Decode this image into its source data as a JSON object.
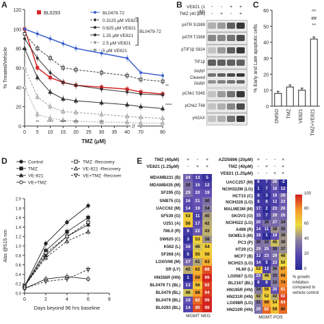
{
  "panels": {
    "A": "A",
    "B": "B",
    "C": "C",
    "D": "D",
    "E": "E"
  },
  "panelA": {
    "ylabel": "% Treated/Vehicle",
    "xlabel": "TMZ (μM)",
    "legend_bl0293": "BL0293",
    "legend_group_label": "BL0479-72",
    "legend_items": [
      "BL0479-72",
      "0.3125 μM VE821",
      "0.625 μM VE821",
      "1.25 μM VE821",
      "2.5 μM VE821",
      "5 μM VE821"
    ],
    "yticks": [
      "0",
      "20",
      "40",
      "60",
      "80",
      "100",
      "120"
    ],
    "xticks": [
      "0",
      "5",
      "10",
      "15",
      "20",
      "25",
      "30",
      "35",
      "40",
      "70",
      "80"
    ]
  },
  "panelB": {
    "header_ve821": "VE821 (1 μM)",
    "header_tmz": "TMZ (40 μM)",
    "header_signs_ve": [
      "-",
      "-",
      "+",
      "+"
    ],
    "header_signs_tmz": [
      "-",
      "+",
      "-",
      "+"
    ],
    "rows": [
      "pATR S1989",
      "pATR T1989",
      "pTIF1β S824",
      "TIF1β",
      "PARP Cleaved PARP",
      "pChk1 S345",
      "pChk2 T68",
      "γH2AX"
    ]
  },
  "panelC": {
    "ylabel": "% Early and Late apoptotic cells",
    "categories": [
      "DMSO",
      "TMZ",
      "VE821",
      "TMZ+VE821"
    ],
    "yticks": [
      "0",
      "10",
      "20",
      "30",
      "40",
      "50",
      "60"
    ],
    "sig": [
      "^^",
      "##",
      "**"
    ]
  },
  "panelD": {
    "ylabel": "Abs @515 nm",
    "xlabel": "Days beyond 96 hrs baseline",
    "legend": [
      "Control",
      "TMZ",
      "VE-821",
      "VE+TMZ",
      "TMZ -Recovery",
      "VE-821 -Recovery",
      "VE+TMZ -Recover"
    ],
    "yticks": [
      "0.0",
      "0.2",
      "0.4",
      "0.6",
      "0.8",
      "1.0",
      "1.2",
      "1.4",
      "1.6",
      "1.8",
      "2.0"
    ],
    "xticks": [
      "0",
      "2",
      "4",
      "6",
      "8"
    ]
  },
  "panelE": {
    "left_headers": [
      "TMZ (40μM)",
      "VE821 (1.25μM)"
    ],
    "left_signs": [
      [
        "+",
        "-",
        "+"
      ],
      [
        "-",
        "+",
        "+"
      ]
    ],
    "left_footer": "MGMT NEG",
    "left_rows": [
      {
        "name": "MDAMB231 (B)",
        "v": [
          "24",
          "13",
          "5"
        ]
      },
      {
        "name": "MDAMB435 (M)",
        "v": [
          "30",
          "15",
          "12"
        ]
      },
      {
        "name": "SF295 (G)",
        "v": [
          "29",
          "20",
          "19"
        ]
      },
      {
        "name": "SNB75 (G)",
        "v": [
          "16",
          "21",
          "30"
        ]
      },
      {
        "name": "UACC62 (M)",
        "v": [
          "14",
          "19",
          "34"
        ]
      },
      {
        "name": "SF539 (G)",
        "v": [
          "53",
          "11",
          "40"
        ]
      },
      {
        "name": "U251 (A)",
        "v": [
          "56",
          "17",
          "42"
        ]
      },
      {
        "name": "786.0 (R)",
        "v": [
          "9",
          "22",
          "43"
        ]
      },
      {
        "name": "SW620 (C)",
        "v": [
          "3",
          "53",
          "38"
        ]
      },
      {
        "name": "K562 (L)",
        "v": [
          "16",
          "46",
          "54"
        ]
      },
      {
        "name": "SF268 (A)",
        "v": [
          "5",
          "55",
          "56"
        ]
      },
      {
        "name": "LOXIVMI (M)",
        "v": [
          "27",
          "41",
          "63"
        ]
      },
      {
        "name": "SR (LY)",
        "v": [
          "42",
          "62",
          "88"
        ]
      },
      {
        "name": "HN356R (HN)",
        "v": [
          "1",
          "69",
          "99"
        ]
      },
      {
        "name": "BL0479 71 (BL)",
        "v": [
          "13",
          "56",
          "92"
        ]
      },
      {
        "name": "BL0479 (BL)",
        "v": [
          "46",
          "68",
          "94"
        ]
      },
      {
        "name": "BL0479 (BL)",
        "v": [
          "19",
          "82",
          "99"
        ]
      },
      {
        "name": "BL0293 (BL)",
        "v": [
          "14",
          "90",
          "99"
        ]
      }
    ],
    "right_headers": [
      "AZD5896 (20μM)",
      "TMZ (40μM)",
      "VE821 (1.25μM)"
    ],
    "right_signs": [
      [
        "+",
        "-",
        "-",
        "+"
      ],
      [
        "-",
        "+",
        "-",
        "+"
      ],
      [
        "-",
        "-",
        "+",
        "+"
      ]
    ],
    "right_footer": "MGMT POS",
    "right_rows": [
      {
        "name": "UACC257 (M)",
        "v": [
          "6",
          "7",
          "26",
          "-2"
        ]
      },
      {
        "name": "NCIH322M (LG)",
        "v": [
          "1",
          "7",
          "18",
          "12"
        ]
      },
      {
        "name": "HCT15 (C)",
        "v": [
          "8",
          "3",
          "18",
          "28"
        ]
      },
      {
        "name": "NCIH228 (LG)",
        "v": [
          "8",
          "8",
          "12",
          "23"
        ]
      },
      {
        "name": "MALME3M (M)",
        "v": [
          "17",
          "2",
          "23",
          "26"
        ]
      },
      {
        "name": "SKOV3 (O)",
        "v": [
          "15",
          "7",
          "29",
          "26"
        ]
      },
      {
        "name": "NCIH522 (LG)",
        "v": [
          "20",
          "30",
          "27",
          "34"
        ]
      },
      {
        "name": "A498 (R)",
        "v": [
          "14",
          "11",
          "38",
          "35"
        ]
      },
      {
        "name": "SKMEL5 (M)",
        "v": [
          "18",
          "1",
          "18",
          "38"
        ]
      },
      {
        "name": "PC3 (P)",
        "v": [
          "30",
          "32",
          "45",
          "38"
        ]
      },
      {
        "name": "HT29 (C)",
        "v": [
          "29",
          "25",
          "30",
          "37"
        ]
      },
      {
        "name": "MCF7 (B)",
        "v": [
          "13",
          "23",
          "29",
          "46"
        ]
      },
      {
        "name": "NCIH23 (LG)",
        "v": [
          "14",
          "5",
          "23",
          "50"
        ]
      },
      {
        "name": "HL60 (L)",
        "v": [
          "53",
          "12",
          "36",
          "67"
        ]
      },
      {
        "name": "LG0567 (LG)",
        "v": [
          "23",
          "46",
          "33",
          "68"
        ]
      },
      {
        "name": "BL2167 (BL)",
        "v": [
          "8",
          "8",
          "33",
          "74"
        ]
      },
      {
        "name": "HN195R (HN)",
        "v": [
          "34",
          "56",
          "20",
          "81"
        ]
      },
      {
        "name": "HN231R (HN)",
        "v": [
          "42",
          "52",
          "42",
          "92"
        ]
      },
      {
        "name": "LG098R (LG)",
        "v": [
          "31",
          "69",
          "54",
          "84"
        ]
      },
      {
        "name": "HN210R (HN)",
        "v": [
          "29",
          "82",
          "59",
          "80"
        ]
      }
    ],
    "colorbar_ticks": [
      "100",
      "80",
      "60",
      "40",
      "20",
      "0"
    ],
    "colorbar_caption": "% growth inhibition compared to vehicle control"
  },
  "chart_data": [
    {
      "type": "line",
      "panel": "A",
      "title": "",
      "xlabel": "TMZ (μM)",
      "ylabel": "% Treated/Vehicle",
      "x": [
        0,
        5,
        10,
        15,
        20,
        30,
        40,
        70,
        80
      ],
      "ylim": [
        0,
        120
      ],
      "series": [
        {
          "name": "BL0293",
          "color": "#d62728",
          "values": [
            100,
            60,
            50,
            45,
            42,
            40,
            38,
            35,
            33
          ]
        },
        {
          "name": "BL0479-72",
          "color": "#3a5fcd",
          "values": [
            100,
            95,
            90,
            85,
            80,
            75,
            70,
            55,
            52
          ]
        },
        {
          "name": "0.3125 μM VE821",
          "values": [
            95,
            80,
            70,
            60,
            58,
            55,
            52,
            48,
            46
          ]
        },
        {
          "name": "0.625 μM VE821",
          "values": [
            90,
            70,
            55,
            45,
            42,
            38,
            35,
            33,
            32
          ]
        },
        {
          "name": "1.25 μM VE821",
          "values": [
            80,
            50,
            35,
            28,
            26,
            24,
            22,
            20,
            18
          ]
        },
        {
          "name": "2.5 μM VE821",
          "values": [
            60,
            30,
            20,
            15,
            14,
            12,
            10,
            9,
            8
          ]
        },
        {
          "name": "5 μM VE821",
          "values": [
            40,
            12,
            8,
            6,
            5,
            4,
            4,
            3,
            3
          ]
        }
      ]
    },
    {
      "type": "bar",
      "panel": "C",
      "categories": [
        "DMSO",
        "TMZ",
        "VE821",
        "TMZ+VE821"
      ],
      "values": [
        8,
        12,
        10,
        42
      ],
      "ylim": [
        0,
        60
      ],
      "ylabel": "% Early and Late apoptotic cells"
    },
    {
      "type": "line",
      "panel": "D",
      "xlabel": "Days beyond 96 hrs baseline",
      "ylabel": "Abs @515 nm",
      "x": [
        0,
        2,
        4,
        6
      ],
      "ylim": [
        0,
        2.0
      ],
      "series": [
        {
          "name": "Control",
          "values": [
            0.15,
            1.05,
            1.5,
            1.85
          ]
        },
        {
          "name": "TMZ",
          "values": [
            0.15,
            0.9,
            1.3,
            1.6
          ]
        },
        {
          "name": "VE-821",
          "values": [
            0.15,
            0.8,
            1.2,
            1.45
          ]
        },
        {
          "name": "VE+TMZ",
          "values": [
            0.1,
            0.3,
            0.35,
            0.3
          ]
        },
        {
          "name": "TMZ -Recovery",
          "values": [
            0.15,
            0.85,
            1.2,
            1.5
          ]
        },
        {
          "name": "VE-821 -Recovery",
          "values": [
            0.15,
            0.75,
            1.1,
            1.3
          ]
        },
        {
          "name": "VE+TMZ -Recover",
          "values": [
            0.1,
            0.25,
            0.3,
            0.5
          ]
        }
      ]
    }
  ]
}
